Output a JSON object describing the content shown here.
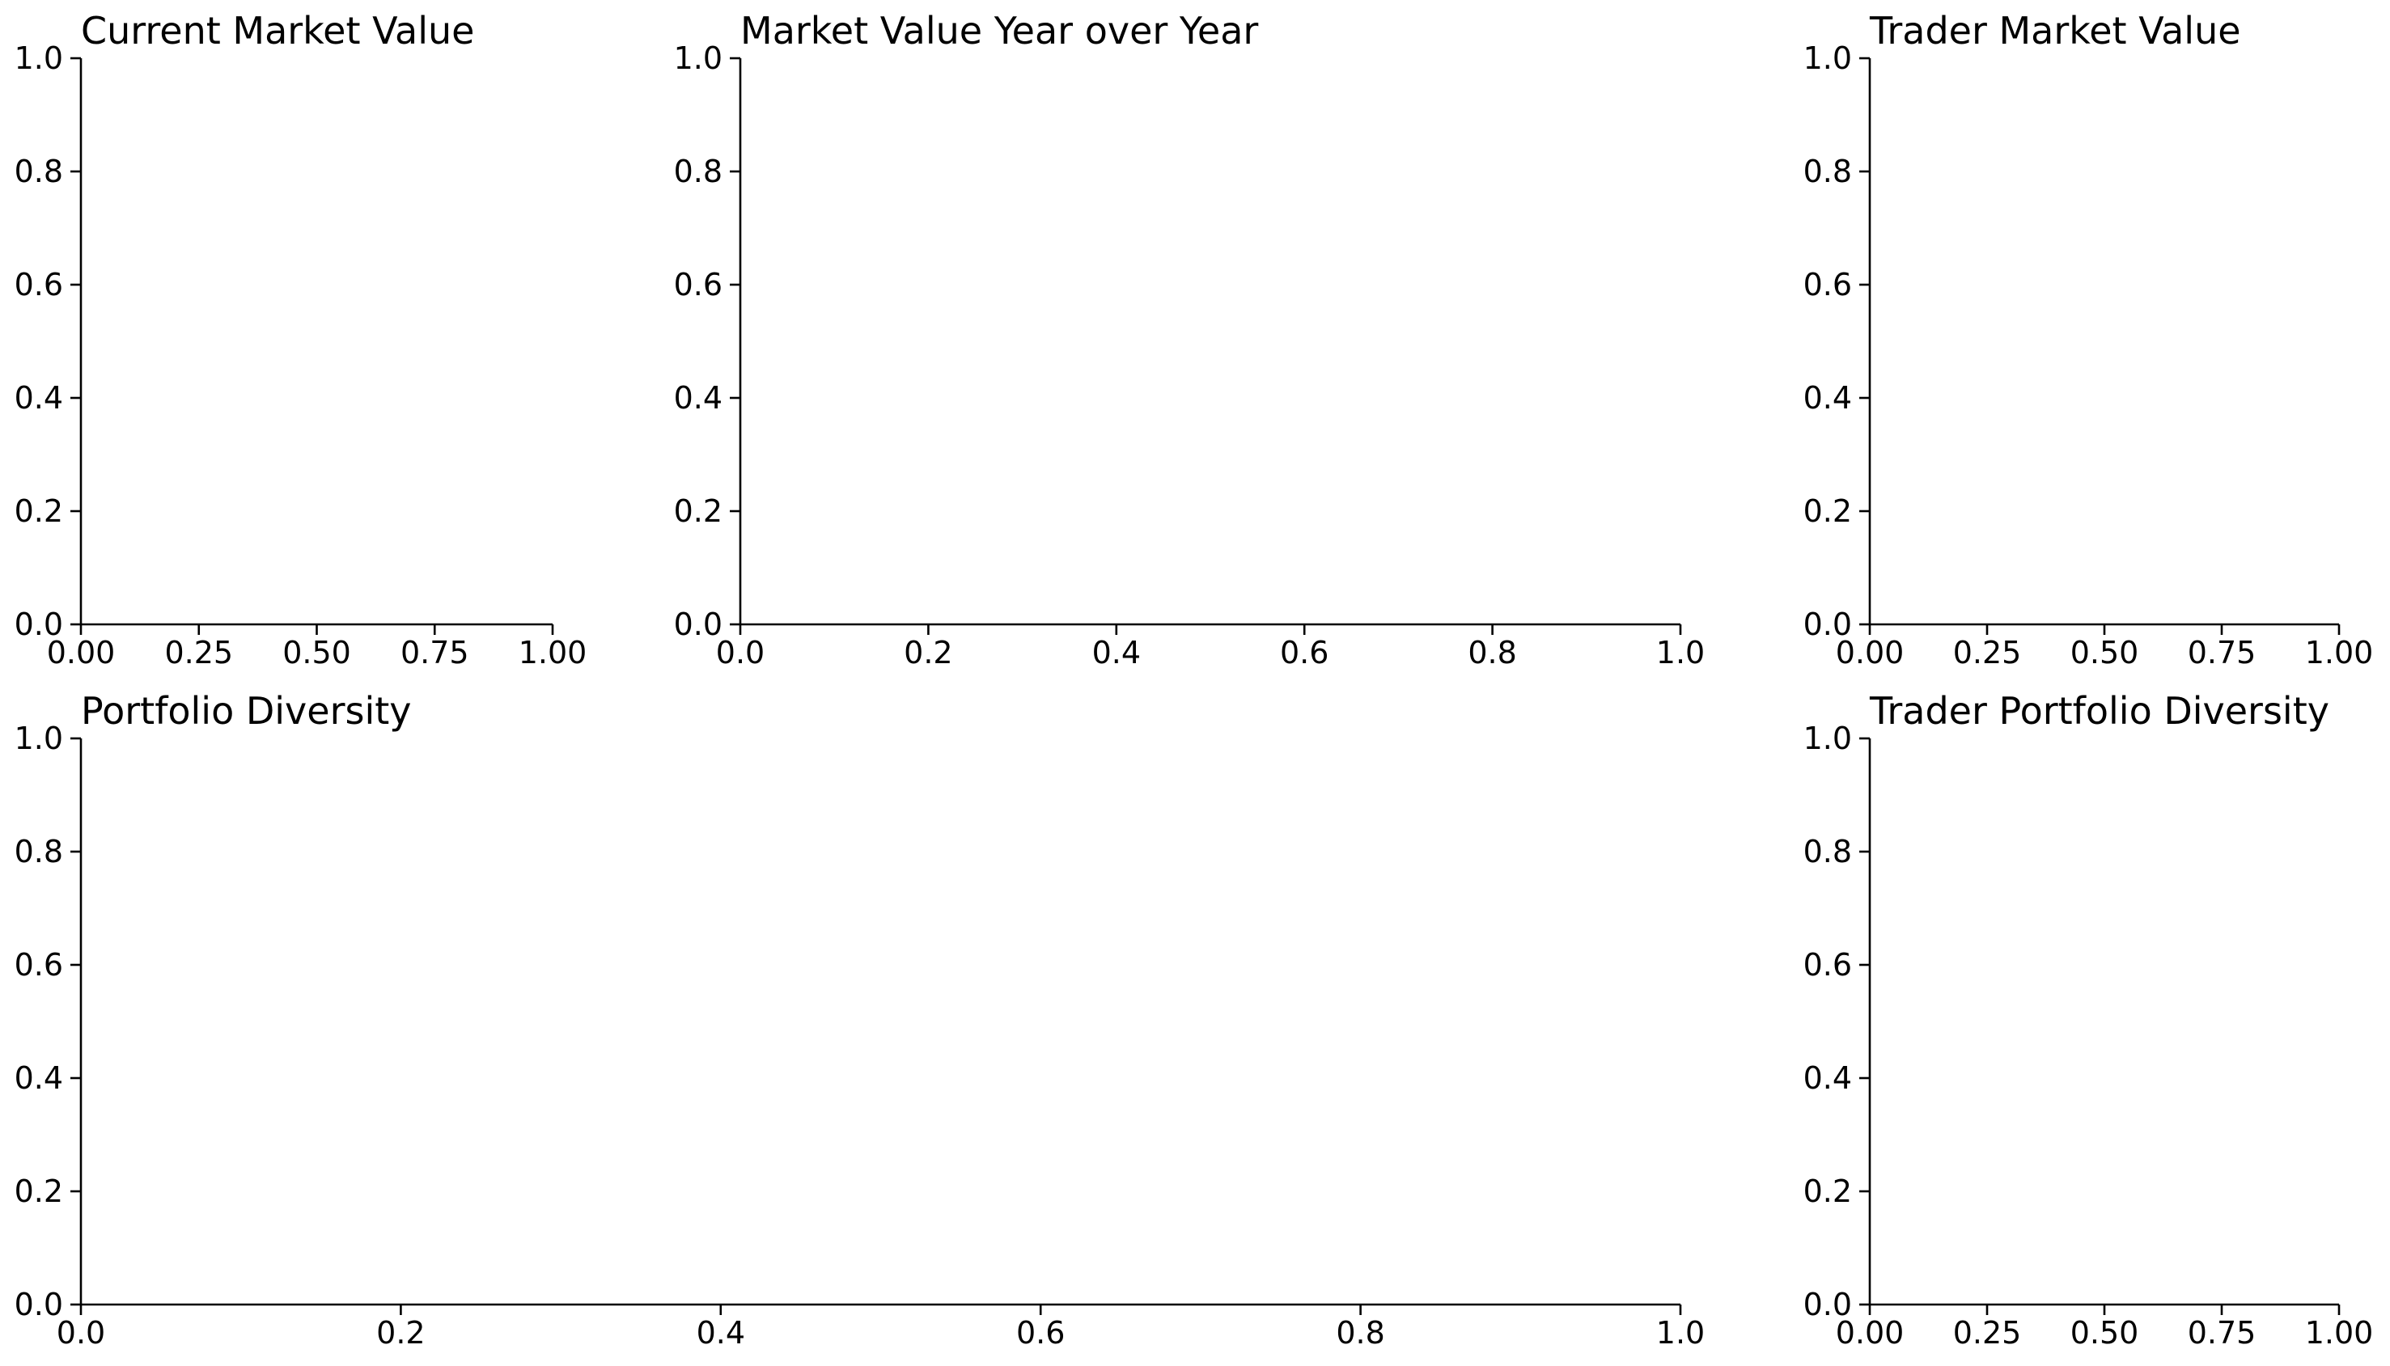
{
  "chart_data": [
    {
      "type": "line",
      "title": "Current Market Value",
      "xlabel": "",
      "ylabel": "",
      "xlim": [
        0,
        1
      ],
      "ylim": [
        0,
        1
      ],
      "xticks": [
        "0.00",
        "0.25",
        "0.50",
        "0.75",
        "1.00"
      ],
      "yticks": [
        "0.0",
        "0.2",
        "0.4",
        "0.6",
        "0.8",
        "1.0"
      ],
      "series": [],
      "grid": false,
      "legend": "none"
    },
    {
      "type": "line",
      "title": "Market Value Year over Year",
      "xlabel": "",
      "ylabel": "",
      "xlim": [
        0,
        1
      ],
      "ylim": [
        0,
        1
      ],
      "xticks": [
        "0.0",
        "0.2",
        "0.4",
        "0.6",
        "0.8",
        "1.0"
      ],
      "yticks": [
        "0.0",
        "0.2",
        "0.4",
        "0.6",
        "0.8",
        "1.0"
      ],
      "series": [],
      "grid": false,
      "legend": "none"
    },
    {
      "type": "line",
      "title": "Trader Market Value",
      "xlabel": "",
      "ylabel": "",
      "xlim": [
        0,
        1
      ],
      "ylim": [
        0,
        1
      ],
      "xticks": [
        "0.00",
        "0.25",
        "0.50",
        "0.75",
        "1.00"
      ],
      "yticks": [
        "0.0",
        "0.2",
        "0.4",
        "0.6",
        "0.8",
        "1.0"
      ],
      "series": [],
      "grid": false,
      "legend": "none"
    },
    {
      "type": "line",
      "title": "Portfolio Diversity",
      "xlabel": "",
      "ylabel": "",
      "xlim": [
        0,
        1
      ],
      "ylim": [
        0,
        1
      ],
      "xticks": [
        "0.0",
        "0.2",
        "0.4",
        "0.6",
        "0.8",
        "1.0"
      ],
      "yticks": [
        "0.0",
        "0.2",
        "0.4",
        "0.6",
        "0.8",
        "1.0"
      ],
      "series": [],
      "grid": false,
      "legend": "none"
    },
    {
      "type": "line",
      "title": "Trader Portfolio Diversity",
      "xlabel": "",
      "ylabel": "",
      "xlim": [
        0,
        1
      ],
      "ylim": [
        0,
        1
      ],
      "xticks": [
        "0.00",
        "0.25",
        "0.50",
        "0.75",
        "1.00"
      ],
      "yticks": [
        "0.0",
        "0.2",
        "0.4",
        "0.6",
        "0.8",
        "1.0"
      ],
      "series": [],
      "grid": false,
      "legend": "none"
    }
  ]
}
